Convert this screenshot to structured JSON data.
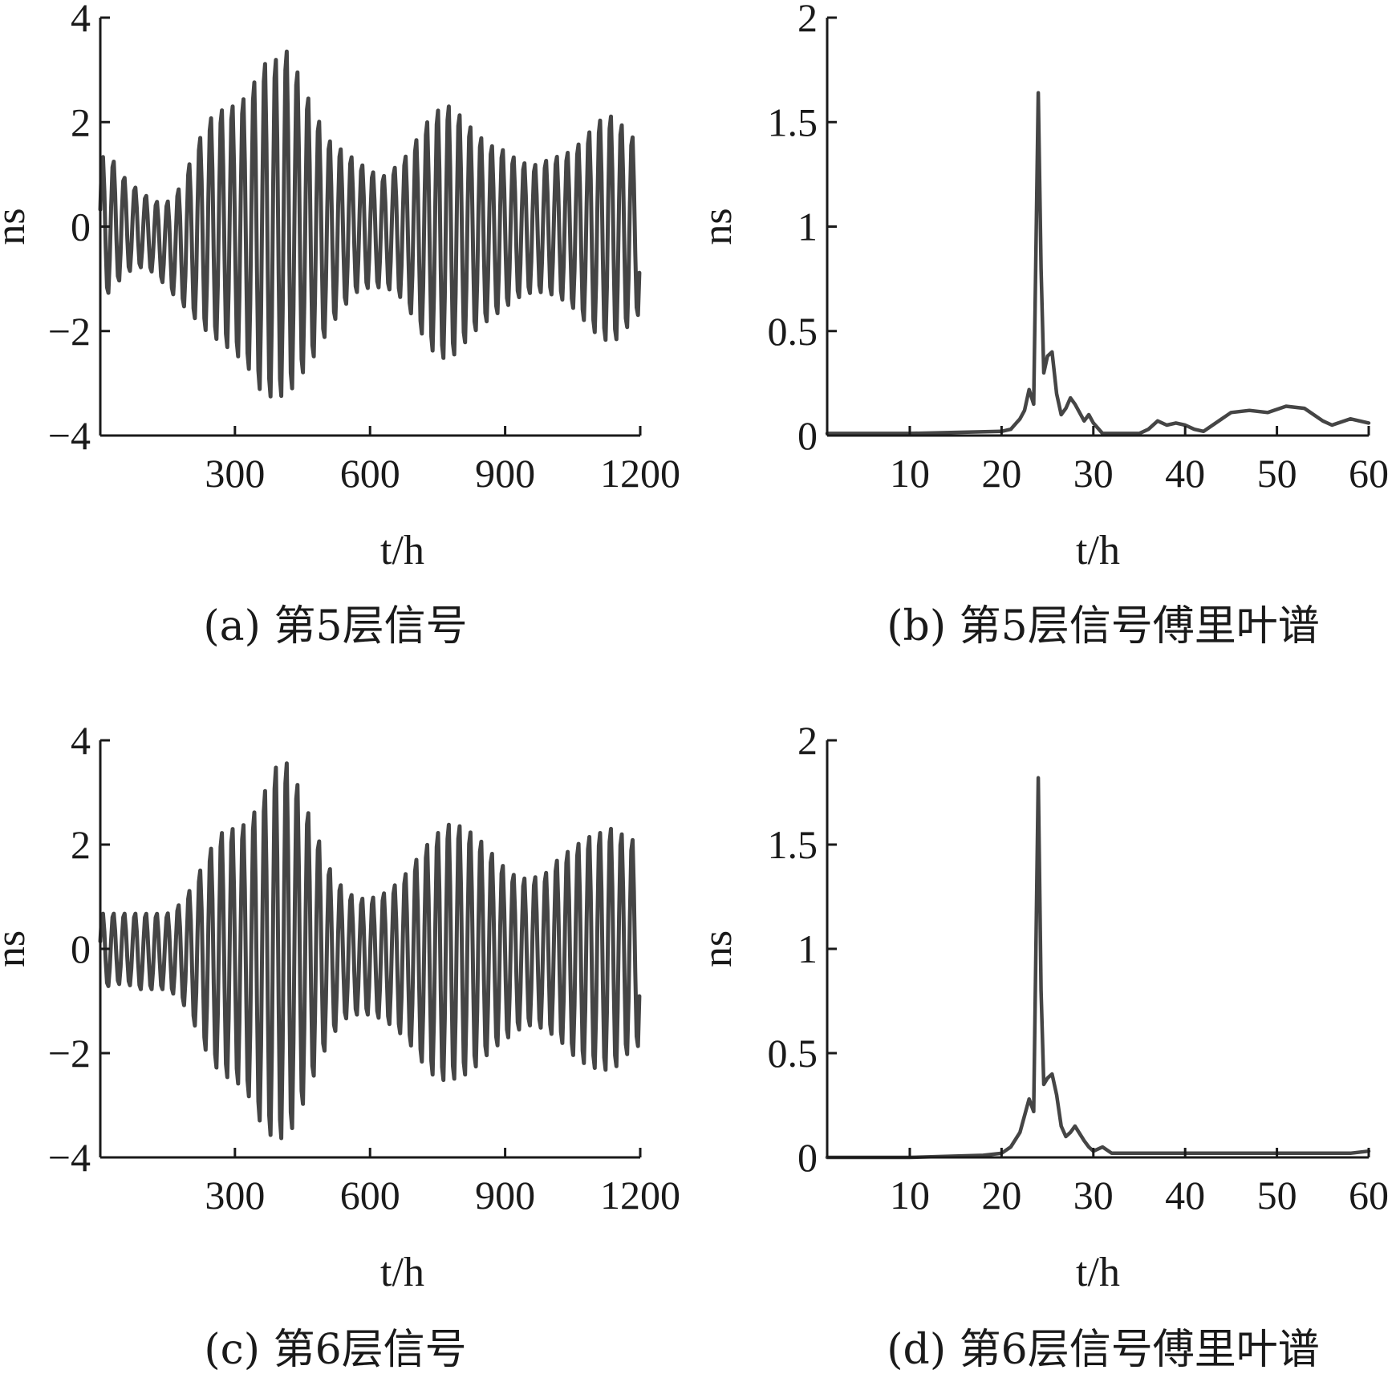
{
  "chart_data": [
    {
      "id": "a",
      "type": "line",
      "caption": "(a) 第5层信号",
      "xlabel": "t/h",
      "ylabel": "ns",
      "xlim": [
        1,
        1200
      ],
      "ylim": [
        -4,
        4
      ],
      "xticks": [
        300,
        600,
        900,
        1200
      ],
      "yticks": [
        -4,
        -2,
        0,
        2,
        4
      ],
      "ytick_labels": [
        "−4",
        "−2",
        "0",
        "2",
        "4"
      ],
      "grid": false,
      "color": "#454545",
      "series": [
        {
          "period_hours": 24,
          "x": [
            1,
            30,
            60,
            90,
            120,
            150,
            180,
            210,
            240,
            270,
            300,
            330,
            360,
            390,
            420,
            450,
            480,
            510,
            540,
            570,
            600,
            630,
            660,
            690,
            720,
            750,
            780,
            810,
            840,
            870,
            900,
            930,
            960,
            990,
            1020,
            1050,
            1080,
            1110,
            1140,
            1170,
            1200
          ],
          "upper": [
            1.4,
            1.3,
            0.9,
            0.7,
            0.5,
            0.5,
            0.8,
            1.5,
            2.1,
            2.3,
            2.4,
            2.6,
            3.2,
            3.3,
            3.5,
            2.8,
            2.2,
            1.7,
            1.5,
            1.3,
            1.1,
            1.0,
            1.2,
            1.5,
            2.0,
            2.3,
            2.4,
            2.1,
            1.8,
            1.6,
            1.5,
            1.3,
            1.2,
            1.3,
            1.4,
            1.5,
            1.8,
            2.1,
            2.2,
            1.9,
            1.6
          ],
          "lower": [
            -1.5,
            -1.2,
            -0.9,
            -0.8,
            -0.9,
            -1.2,
            -1.5,
            -1.8,
            -2.1,
            -2.3,
            -2.5,
            -2.8,
            -3.3,
            -3.4,
            -3.3,
            -2.9,
            -2.5,
            -2.0,
            -1.6,
            -1.3,
            -1.2,
            -1.2,
            -1.3,
            -1.7,
            -2.2,
            -2.6,
            -2.6,
            -2.3,
            -2.0,
            -1.8,
            -1.6,
            -1.4,
            -1.3,
            -1.3,
            -1.4,
            -1.6,
            -1.9,
            -2.2,
            -2.3,
            -2.0,
            -1.7
          ]
        }
      ]
    },
    {
      "id": "b",
      "type": "line",
      "caption": "(b) 第5层信号傅里叶谱",
      "xlabel": "t/h",
      "ylabel": "ns",
      "xlim": [
        1,
        60
      ],
      "ylim": [
        0,
        2
      ],
      "xticks": [
        10,
        20,
        30,
        40,
        50,
        60
      ],
      "yticks": [
        0,
        0.5,
        1,
        1.5,
        2
      ],
      "ytick_labels": [
        "0",
        "0.5",
        "1",
        "1.5",
        "2"
      ],
      "grid": false,
      "color": "#5a5a5a",
      "series": [
        {
          "x": [
            1,
            10,
            20,
            21,
            22,
            22.5,
            23,
            23.5,
            24,
            24.3,
            24.6,
            25,
            25.5,
            26,
            26.5,
            27,
            27.5,
            28,
            29,
            29.5,
            30,
            31,
            33,
            35,
            36,
            37,
            38,
            39,
            40,
            41,
            42,
            43,
            45,
            47,
            49,
            51,
            53,
            55,
            56,
            58,
            60
          ],
          "y": [
            0.01,
            0.01,
            0.02,
            0.03,
            0.08,
            0.12,
            0.22,
            0.15,
            1.64,
            0.8,
            0.3,
            0.38,
            0.4,
            0.2,
            0.1,
            0.13,
            0.18,
            0.15,
            0.07,
            0.1,
            0.06,
            0.01,
            0.01,
            0.01,
            0.03,
            0.07,
            0.05,
            0.06,
            0.05,
            0.03,
            0.02,
            0.05,
            0.11,
            0.12,
            0.11,
            0.14,
            0.13,
            0.07,
            0.05,
            0.08,
            0.06
          ]
        }
      ]
    },
    {
      "id": "c",
      "type": "line",
      "caption": "(c) 第6层信号",
      "xlabel": "t/h",
      "ylabel": "ns",
      "xlim": [
        1,
        1200
      ],
      "ylim": [
        -4,
        4
      ],
      "xticks": [
        300,
        600,
        900,
        1200
      ],
      "yticks": [
        -4,
        -2,
        0,
        2,
        4
      ],
      "ytick_labels": [
        "−4",
        "−2",
        "0",
        "2",
        "4"
      ],
      "grid": false,
      "color": "#454545",
      "series": [
        {
          "period_hours": 24,
          "x": [
            1,
            30,
            60,
            90,
            120,
            150,
            180,
            210,
            240,
            270,
            300,
            330,
            360,
            390,
            420,
            450,
            480,
            510,
            540,
            570,
            600,
            630,
            660,
            690,
            720,
            750,
            780,
            810,
            840,
            870,
            900,
            930,
            960,
            990,
            1020,
            1050,
            1080,
            1110,
            1140,
            1170,
            1200
          ],
          "upper": [
            0.7,
            0.7,
            0.7,
            0.7,
            0.7,
            0.7,
            0.9,
            1.3,
            1.9,
            2.3,
            2.4,
            2.5,
            3.0,
            3.6,
            3.7,
            3.0,
            2.3,
            1.6,
            1.2,
            1.0,
            1.0,
            1.1,
            1.3,
            1.6,
            2.0,
            2.3,
            2.5,
            2.4,
            2.2,
            1.9,
            1.6,
            1.4,
            1.4,
            1.5,
            1.8,
            2.0,
            2.2,
            2.3,
            2.4,
            2.2,
            2.1
          ],
          "lower": [
            -0.8,
            -0.7,
            -0.7,
            -0.8,
            -0.8,
            -0.8,
            -1.0,
            -1.5,
            -2.1,
            -2.5,
            -2.6,
            -2.9,
            -3.5,
            -3.8,
            -3.7,
            -3.1,
            -2.4,
            -1.8,
            -1.4,
            -1.3,
            -1.3,
            -1.4,
            -1.6,
            -1.9,
            -2.3,
            -2.6,
            -2.6,
            -2.5,
            -2.3,
            -2.0,
            -1.8,
            -1.6,
            -1.5,
            -1.6,
            -1.8,
            -2.1,
            -2.3,
            -2.4,
            -2.4,
            -2.1,
            -1.9
          ]
        }
      ]
    },
    {
      "id": "d",
      "type": "line",
      "caption": "(d) 第6层信号傅里叶谱",
      "xlabel": "t/h",
      "ylabel": "ns",
      "xlim": [
        1,
        60
      ],
      "ylim": [
        0,
        2
      ],
      "xticks": [
        10,
        20,
        30,
        40,
        50,
        60
      ],
      "yticks": [
        0,
        0.5,
        1,
        1.5,
        2
      ],
      "ytick_labels": [
        "0",
        "0.5",
        "1",
        "1.5",
        "2"
      ],
      "grid": false,
      "color": "#5a5a5a",
      "series": [
        {
          "x": [
            1,
            10,
            18,
            20,
            21,
            22,
            22.5,
            23,
            23.5,
            24,
            24.3,
            24.6,
            25,
            25.5,
            26,
            26.5,
            27,
            27.5,
            28,
            29,
            29.5,
            30,
            31,
            32,
            34,
            40,
            50,
            58,
            60
          ],
          "y": [
            0.0,
            0.0,
            0.01,
            0.02,
            0.05,
            0.12,
            0.2,
            0.28,
            0.22,
            1.82,
            0.8,
            0.35,
            0.38,
            0.4,
            0.3,
            0.15,
            0.1,
            0.12,
            0.15,
            0.08,
            0.05,
            0.03,
            0.05,
            0.02,
            0.02,
            0.02,
            0.02,
            0.02,
            0.03
          ]
        }
      ]
    }
  ]
}
